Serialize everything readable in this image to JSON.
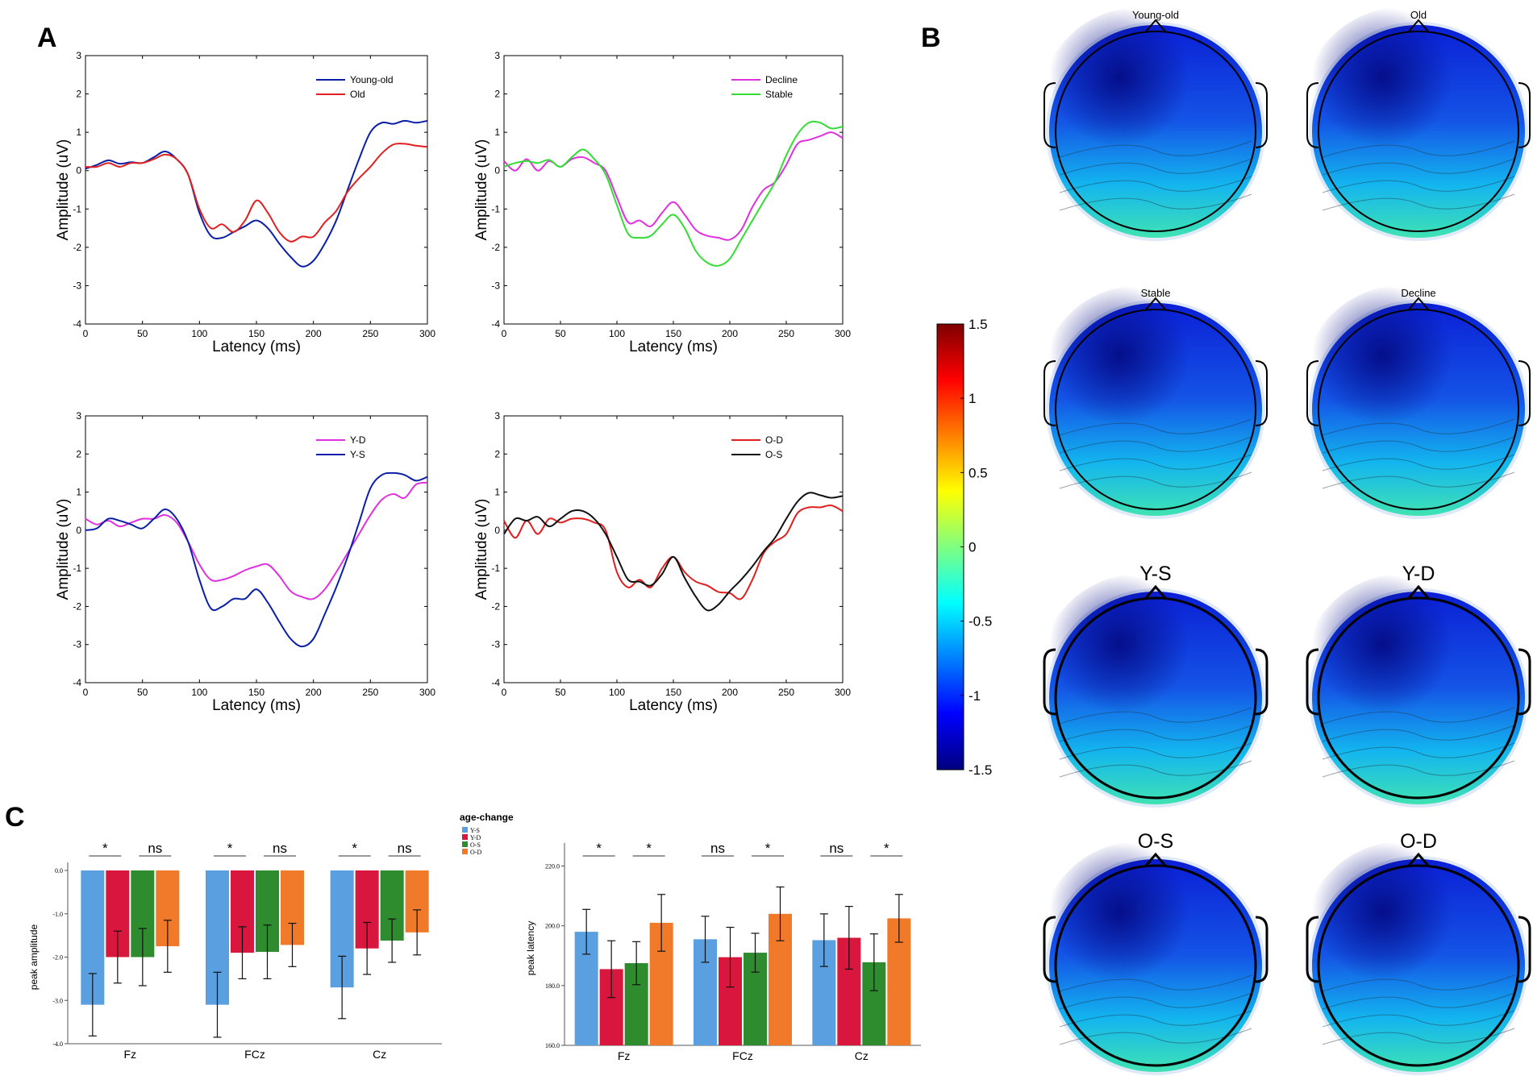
{
  "panel_letters": {
    "a": "A",
    "b": "B",
    "c": "C"
  },
  "chart_data": [
    {
      "id": "erp1",
      "type": "line",
      "xlabel": "Latency (ms)",
      "ylabel": "Amplitude (uV)",
      "xlim": [
        0,
        300
      ],
      "ylim": [
        -4,
        3
      ],
      "xticks": [
        "0",
        "50",
        "100",
        "150",
        "200",
        "250",
        "300"
      ],
      "yticks": [
        "-4",
        "-3",
        "-2",
        "-1",
        "0",
        "1",
        "2",
        "3"
      ],
      "legend_position": "top-right",
      "series": [
        {
          "name": "Young-old",
          "color": "#0a1ea8",
          "x": [
            0,
            10,
            20,
            30,
            40,
            50,
            60,
            70,
            80,
            90,
            100,
            110,
            120,
            130,
            140,
            150,
            160,
            170,
            180,
            190,
            200,
            210,
            220,
            230,
            240,
            250,
            260,
            270,
            280,
            290,
            300
          ],
          "y": [
            0.05,
            0.15,
            0.27,
            0.18,
            0.22,
            0.2,
            0.35,
            0.5,
            0.3,
            -0.1,
            -1.1,
            -1.7,
            -1.75,
            -1.6,
            -1.45,
            -1.3,
            -1.5,
            -1.9,
            -2.25,
            -2.5,
            -2.35,
            -1.9,
            -1.3,
            -0.5,
            0.3,
            1.0,
            1.25,
            1.22,
            1.3,
            1.25,
            1.3
          ]
        },
        {
          "name": "Old",
          "color": "#e02020",
          "x": [
            0,
            10,
            20,
            30,
            40,
            50,
            60,
            70,
            80,
            90,
            100,
            110,
            120,
            130,
            140,
            150,
            160,
            170,
            180,
            190,
            200,
            210,
            220,
            230,
            240,
            250,
            260,
            270,
            280,
            290,
            300
          ],
          "y": [
            0.1,
            0.1,
            0.2,
            0.1,
            0.2,
            0.2,
            0.3,
            0.42,
            0.3,
            -0.1,
            -1.0,
            -1.5,
            -1.4,
            -1.6,
            -1.3,
            -0.78,
            -1.1,
            -1.6,
            -1.85,
            -1.72,
            -1.72,
            -1.35,
            -1.05,
            -0.55,
            -0.2,
            0.1,
            0.45,
            0.68,
            0.7,
            0.65,
            0.62
          ]
        }
      ]
    },
    {
      "id": "erp2",
      "type": "line",
      "xlabel": "Latency (ms)",
      "ylabel": "Amplitude (uV)",
      "xlim": [
        0,
        300
      ],
      "ylim": [
        -4,
        3
      ],
      "xticks": [
        "0",
        "50",
        "100",
        "150",
        "200",
        "250",
        "300"
      ],
      "yticks": [
        "-4",
        "-3",
        "-2",
        "-1",
        "0",
        "1",
        "2",
        "3"
      ],
      "legend_position": "top-right",
      "series": [
        {
          "name": "Decline",
          "color": "#e030e0",
          "x": [
            0,
            10,
            20,
            30,
            40,
            50,
            60,
            70,
            80,
            90,
            100,
            110,
            120,
            130,
            140,
            150,
            160,
            170,
            180,
            190,
            200,
            210,
            220,
            230,
            240,
            250,
            260,
            270,
            280,
            290,
            300
          ],
          "y": [
            0.25,
            0.0,
            0.3,
            0.0,
            0.25,
            0.1,
            0.3,
            0.35,
            0.2,
            0.0,
            -0.7,
            -1.35,
            -1.3,
            -1.45,
            -1.1,
            -0.82,
            -1.15,
            -1.55,
            -1.7,
            -1.75,
            -1.8,
            -1.55,
            -0.95,
            -0.5,
            -0.3,
            0.15,
            0.7,
            0.8,
            0.9,
            1.0,
            0.85
          ]
        },
        {
          "name": "Stable",
          "color": "#33dd33",
          "x": [
            0,
            10,
            20,
            30,
            40,
            50,
            60,
            70,
            80,
            90,
            100,
            110,
            120,
            130,
            140,
            150,
            160,
            170,
            180,
            190,
            200,
            210,
            220,
            230,
            240,
            250,
            260,
            270,
            280,
            290,
            300
          ],
          "y": [
            0.1,
            0.2,
            0.25,
            0.2,
            0.28,
            0.1,
            0.35,
            0.55,
            0.3,
            -0.1,
            -0.9,
            -1.65,
            -1.75,
            -1.7,
            -1.4,
            -1.15,
            -1.5,
            -2.1,
            -2.4,
            -2.48,
            -2.3,
            -1.8,
            -1.3,
            -0.8,
            -0.3,
            0.4,
            0.95,
            1.25,
            1.25,
            1.1,
            1.15
          ]
        }
      ]
    },
    {
      "id": "erp3",
      "type": "line",
      "xlabel": "Latency (ms)",
      "ylabel": "Amplitude (uV)",
      "xlim": [
        0,
        300
      ],
      "ylim": [
        -4,
        3
      ],
      "xticks": [
        "0",
        "50",
        "100",
        "150",
        "200",
        "250",
        "300"
      ],
      "yticks": [
        "-4",
        "-3",
        "-2",
        "-1",
        "0",
        "1",
        "2",
        "3"
      ],
      "legend_position": "top-right",
      "series": [
        {
          "name": "Y-D",
          "color": "#e030e0",
          "x": [
            0,
            10,
            20,
            30,
            40,
            50,
            60,
            70,
            80,
            90,
            100,
            110,
            120,
            130,
            140,
            150,
            160,
            170,
            180,
            190,
            200,
            210,
            220,
            230,
            240,
            250,
            260,
            270,
            280,
            290,
            300
          ],
          "y": [
            0.3,
            0.15,
            0.25,
            0.1,
            0.2,
            0.3,
            0.3,
            0.4,
            0.2,
            -0.3,
            -0.9,
            -1.3,
            -1.3,
            -1.2,
            -1.05,
            -0.95,
            -0.9,
            -1.2,
            -1.6,
            -1.75,
            -1.8,
            -1.55,
            -1.1,
            -0.6,
            -0.1,
            0.4,
            0.8,
            0.95,
            0.85,
            1.2,
            1.25
          ]
        },
        {
          "name": "Y-S",
          "color": "#0a1ea8",
          "x": [
            0,
            10,
            20,
            30,
            40,
            50,
            60,
            70,
            80,
            90,
            100,
            110,
            120,
            130,
            140,
            150,
            160,
            170,
            180,
            190,
            200,
            210,
            220,
            230,
            240,
            250,
            260,
            270,
            280,
            290,
            300
          ],
          "y": [
            0.0,
            0.05,
            0.3,
            0.25,
            0.15,
            0.05,
            0.3,
            0.55,
            0.3,
            -0.3,
            -1.3,
            -2.05,
            -2.0,
            -1.8,
            -1.8,
            -1.55,
            -1.9,
            -2.4,
            -2.85,
            -3.05,
            -2.85,
            -2.2,
            -1.5,
            -0.7,
            0.2,
            1.1,
            1.45,
            1.5,
            1.45,
            1.3,
            1.4
          ]
        }
      ]
    },
    {
      "id": "erp4",
      "type": "line",
      "xlabel": "Latency (ms)",
      "ylabel": "Amplitude (uV)",
      "xlim": [
        0,
        300
      ],
      "ylim": [
        -4,
        3
      ],
      "xticks": [
        "0",
        "50",
        "100",
        "150",
        "200",
        "250",
        "300"
      ],
      "yticks": [
        "-4",
        "-3",
        "-2",
        "-1",
        "0",
        "1",
        "2",
        "3"
      ],
      "legend_position": "top-right",
      "series": [
        {
          "name": "O-D",
          "color": "#e02020",
          "x": [
            0,
            10,
            20,
            30,
            40,
            50,
            60,
            70,
            80,
            90,
            100,
            110,
            120,
            130,
            140,
            150,
            160,
            170,
            180,
            190,
            200,
            210,
            220,
            230,
            240,
            250,
            260,
            270,
            280,
            290,
            300
          ],
          "y": [
            0.25,
            -0.2,
            0.25,
            -0.1,
            0.3,
            0.2,
            0.3,
            0.3,
            0.2,
            0.0,
            -1.1,
            -1.5,
            -1.3,
            -1.5,
            -1.0,
            -0.7,
            -1.1,
            -1.35,
            -1.45,
            -1.62,
            -1.65,
            -1.8,
            -1.3,
            -0.6,
            -0.3,
            -0.1,
            0.45,
            0.6,
            0.6,
            0.65,
            0.5
          ]
        },
        {
          "name": "O-S",
          "color": "#111111",
          "x": [
            0,
            10,
            20,
            30,
            40,
            50,
            60,
            70,
            80,
            90,
            100,
            110,
            120,
            130,
            140,
            150,
            160,
            170,
            180,
            190,
            200,
            210,
            220,
            230,
            240,
            250,
            260,
            270,
            280,
            290,
            300
          ],
          "y": [
            -0.1,
            0.3,
            0.25,
            0.35,
            0.1,
            0.3,
            0.5,
            0.5,
            0.3,
            -0.1,
            -0.7,
            -1.3,
            -1.35,
            -1.45,
            -1.15,
            -0.7,
            -1.25,
            -1.75,
            -2.1,
            -1.95,
            -1.6,
            -1.3,
            -0.95,
            -0.55,
            -0.2,
            0.3,
            0.75,
            0.98,
            0.92,
            0.85,
            0.9
          ]
        }
      ]
    },
    {
      "id": "amp_bars",
      "type": "bar",
      "ylabel": "peak amplitude",
      "ylim": [
        -4.0,
        0.0
      ],
      "yticks": [
        "0.0",
        "-1.0",
        "-2.0",
        "-3.0",
        "-4.0"
      ],
      "categories": [
        "Fz",
        "FCz",
        "Cz"
      ],
      "legend_title": "age-change",
      "legend_position": "top-right",
      "series": [
        {
          "name": "Y-S",
          "color": "#5a9fe0",
          "values": [
            -3.1,
            -3.1,
            -2.7
          ],
          "errors": [
            0.72,
            0.75,
            0.72
          ]
        },
        {
          "name": "Y-D",
          "color": "#d9163e",
          "values": [
            -2.0,
            -1.9,
            -1.8
          ],
          "errors": [
            0.6,
            0.6,
            0.6
          ]
        },
        {
          "name": "O-S",
          "color": "#2e8b2e",
          "values": [
            -2.0,
            -1.88,
            -1.62
          ],
          "errors": [
            0.66,
            0.62,
            0.5
          ]
        },
        {
          "name": "O-D",
          "color": "#f07a2a",
          "values": [
            -1.75,
            -1.72,
            -1.43
          ],
          "errors": [
            0.6,
            0.5,
            0.52
          ]
        }
      ],
      "significance": [
        {
          "category": "Fz",
          "pair": "Y",
          "label": "*"
        },
        {
          "category": "Fz",
          "pair": "O",
          "label": "ns"
        },
        {
          "category": "FCz",
          "pair": "Y",
          "label": "*"
        },
        {
          "category": "FCz",
          "pair": "O",
          "label": "ns"
        },
        {
          "category": "Cz",
          "pair": "Y",
          "label": "*"
        },
        {
          "category": "Cz",
          "pair": "O",
          "label": "ns"
        }
      ]
    },
    {
      "id": "lat_bars",
      "type": "bar",
      "ylabel": "peak latency",
      "ylim": [
        160.0,
        225.0
      ],
      "yticks": [
        "160.0",
        "180.0",
        "200.0",
        "220.0"
      ],
      "ytick_values": [
        160,
        180,
        200,
        220
      ],
      "categories": [
        "Fz",
        "FCz",
        "Cz"
      ],
      "series": [
        {
          "name": "Y-S",
          "color": "#5a9fe0",
          "values": [
            198,
            195.5,
            195.2
          ],
          "errors": [
            7.5,
            7.7,
            8.8
          ]
        },
        {
          "name": "Y-D",
          "color": "#d9163e",
          "values": [
            185.5,
            189.5,
            196
          ],
          "errors": [
            9.5,
            10,
            10.5
          ]
        },
        {
          "name": "O-S",
          "color": "#2e8b2e",
          "values": [
            187.5,
            191,
            187.8
          ],
          "errors": [
            7.2,
            6.5,
            9.5
          ]
        },
        {
          "name": "O-D",
          "color": "#f07a2a",
          "values": [
            201,
            204,
            202.5
          ],
          "errors": [
            9.5,
            9,
            8
          ]
        }
      ],
      "significance": [
        {
          "category": "Fz",
          "pair": "Y",
          "label": "*"
        },
        {
          "category": "Fz",
          "pair": "O",
          "label": "*"
        },
        {
          "category": "FCz",
          "pair": "Y",
          "label": "ns"
        },
        {
          "category": "FCz",
          "pair": "O",
          "label": "*"
        },
        {
          "category": "Cz",
          "pair": "Y",
          "label": "ns"
        },
        {
          "category": "Cz",
          "pair": "O",
          "label": "*"
        }
      ]
    },
    {
      "id": "topomaps",
      "type": "heatmap",
      "colorbar": {
        "min": -1.5,
        "max": 1.5,
        "ticks": [
          "1.5",
          "1",
          "0.5",
          "0",
          "-0.5",
          "-1",
          "-1.5"
        ]
      },
      "maps": [
        {
          "label": "Young-old",
          "size": "small"
        },
        {
          "label": "Old",
          "size": "small"
        },
        {
          "label": "Stable",
          "size": "small"
        },
        {
          "label": "Decline",
          "size": "small"
        },
        {
          "label": "Y-S",
          "size": "large"
        },
        {
          "label": "Y-D",
          "size": "large"
        },
        {
          "label": "O-S",
          "size": "large"
        },
        {
          "label": "O-D",
          "size": "large"
        }
      ]
    }
  ]
}
